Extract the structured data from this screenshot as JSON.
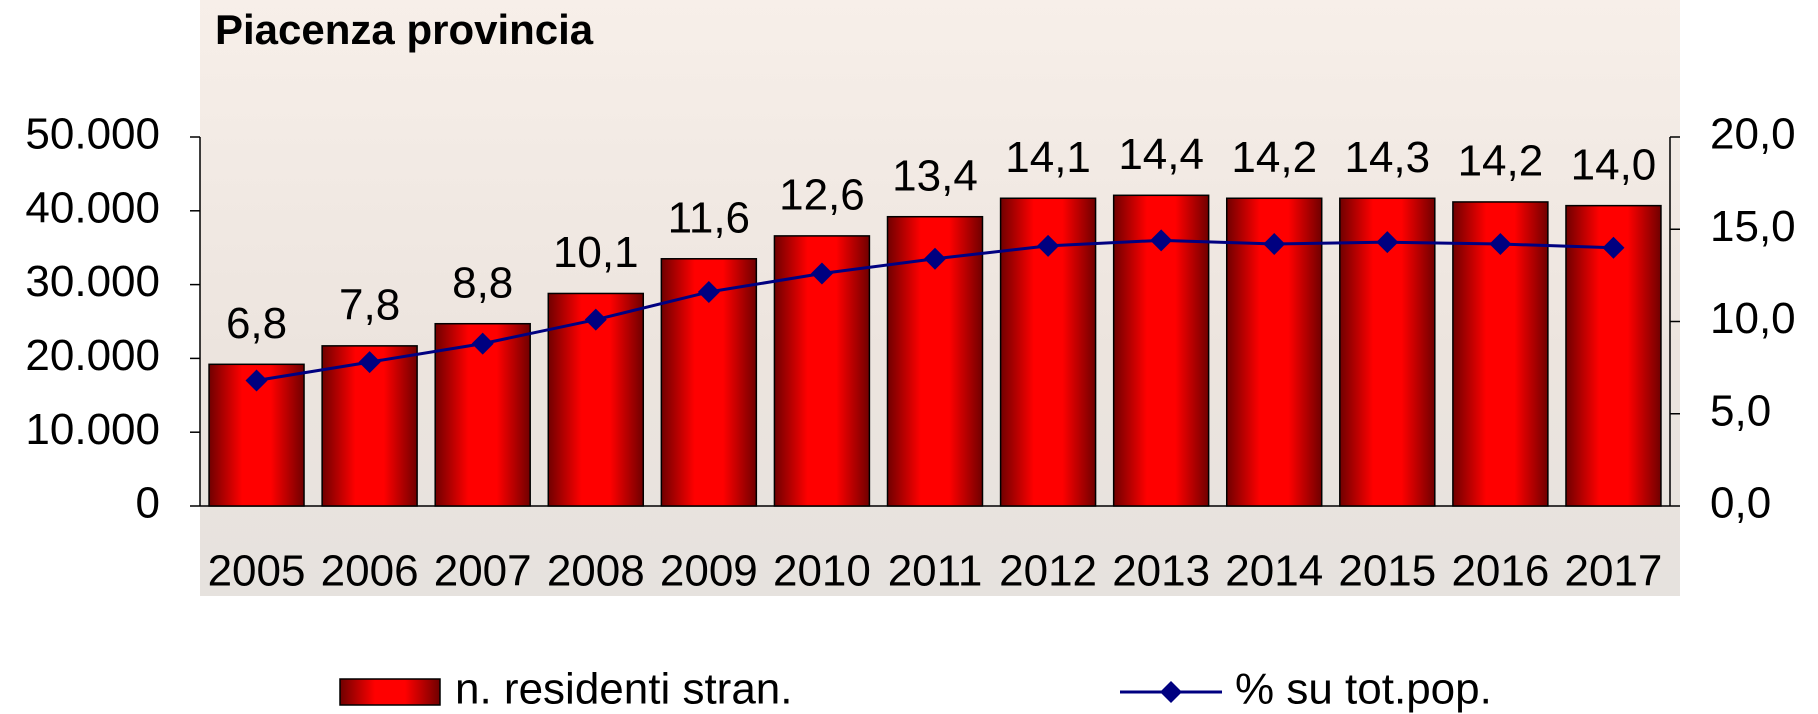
{
  "chart_data": {
    "type": "bar-line",
    "title": "Piacenza provincia",
    "categories": [
      "2005",
      "2006",
      "2007",
      "2008",
      "2009",
      "2010",
      "2011",
      "2012",
      "2013",
      "2014",
      "2015",
      "2016",
      "2017"
    ],
    "series": [
      {
        "name": "n. residenti stran.",
        "color": "#ff0000",
        "values": [
          19200,
          21700,
          24700,
          28800,
          33500,
          36600,
          39200,
          41700,
          42100,
          41700,
          41700,
          41200,
          40700
        ]
      },
      {
        "name": "% su tot.pop.",
        "color": "#000080",
        "axis": "y2",
        "values": [
          6.8,
          7.8,
          8.8,
          10.1,
          11.6,
          12.6,
          13.4,
          14.1,
          14.4,
          14.2,
          14.3,
          14.2,
          14.0
        ],
        "value_labels": [
          "6,8",
          "7,8",
          "8,8",
          "10,1",
          "11,6",
          "12,6",
          "13,4",
          "14,1",
          "14,4",
          "14,2",
          "14,3",
          "14,2",
          "14,0"
        ]
      }
    ],
    "ylim": [
      0,
      50000
    ],
    "yticks": [
      0,
      {
        "value": 10000,
        "label": "10.000"
      },
      {
        "value": 20000,
        "label": "20.000"
      },
      {
        "value": 30000,
        "label": "30.000"
      },
      {
        "value": 40000,
        "label": "40.000"
      },
      {
        "value": 50000,
        "label": "50.000"
      }
    ],
    "y2lim": [
      0,
      20
    ],
    "y2ticks": [
      {
        "value": 0,
        "label": "0,0"
      },
      {
        "value": 5,
        "label": "5,0"
      },
      {
        "value": 10,
        "label": "10,0"
      },
      {
        "value": 15,
        "label": "15,0"
      },
      {
        "value": 20,
        "label": "20,0"
      }
    ]
  }
}
